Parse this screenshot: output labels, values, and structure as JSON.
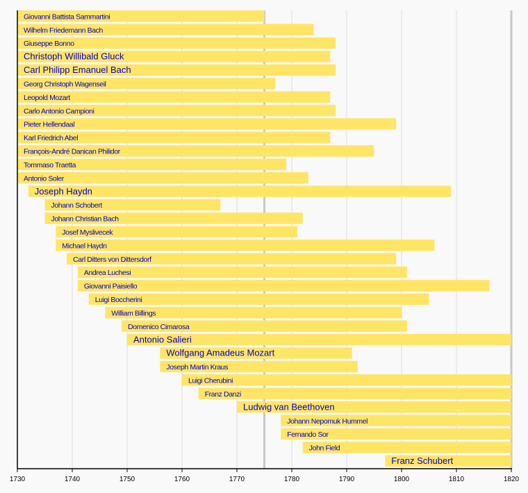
{
  "chart_data": {
    "type": "timeline",
    "xlim": [
      1730,
      1820
    ],
    "x_ticks": [
      1730,
      1740,
      1750,
      1760,
      1770,
      1780,
      1790,
      1800,
      1810,
      1820
    ],
    "grid": true,
    "highlight_lines": [
      1775,
      1820
    ],
    "colors": {
      "bar": "#ffe566",
      "label": "#0000cc",
      "grid": "#dddddd",
      "highlight": "#c8c8c8",
      "axis": "#000000",
      "background": "#f9f9f9"
    },
    "bars": [
      {
        "label": "Giovanni Battista Sammartini",
        "start": 1730,
        "end": 1775,
        "large": false
      },
      {
        "label": "Wilhelm Friedemann Bach",
        "start": 1730,
        "end": 1784,
        "large": false
      },
      {
        "label": "Giuseppe Bonno",
        "start": 1730,
        "end": 1788,
        "large": false
      },
      {
        "label": "Christoph Willibald Gluck",
        "start": 1730,
        "end": 1787,
        "large": true
      },
      {
        "label": "Carl Philipp Emanuel Bach",
        "start": 1730,
        "end": 1788,
        "large": true
      },
      {
        "label": "Georg Christoph Wagenseil",
        "start": 1730,
        "end": 1777,
        "large": false
      },
      {
        "label": "Leopold Mozart",
        "start": 1730,
        "end": 1787,
        "large": false
      },
      {
        "label": "Carlo Antonio Campioni",
        "start": 1730,
        "end": 1788,
        "large": false
      },
      {
        "label": "Pieter Hellendaal",
        "start": 1730,
        "end": 1799,
        "large": false
      },
      {
        "label": "Karl Friedrich Abel",
        "start": 1730,
        "end": 1787,
        "large": false
      },
      {
        "label": "François-André Danican Philidor",
        "start": 1730,
        "end": 1795,
        "large": false
      },
      {
        "label": "Tommaso Traetta",
        "start": 1730,
        "end": 1779,
        "large": false
      },
      {
        "label": "Antonio Soler",
        "start": 1730,
        "end": 1783,
        "large": false
      },
      {
        "label": "Joseph Haydn",
        "start": 1732,
        "end": 1809,
        "large": true
      },
      {
        "label": "Johann Schobert",
        "start": 1735,
        "end": 1767,
        "large": false
      },
      {
        "label": "Johann Christian Bach",
        "start": 1735,
        "end": 1782,
        "large": false
      },
      {
        "label": "Josef Myslivecek",
        "start": 1737,
        "end": 1781,
        "large": false
      },
      {
        "label": "Michael Haydn",
        "start": 1737,
        "end": 1806,
        "large": false
      },
      {
        "label": "Carl Ditters von Dittersdorf",
        "start": 1739,
        "end": 1799,
        "large": false
      },
      {
        "label": "Andrea Luchesi",
        "start": 1741,
        "end": 1801,
        "large": false
      },
      {
        "label": "Giovanni Paisiello",
        "start": 1741,
        "end": 1816,
        "large": false
      },
      {
        "label": "Luigi Boccherini",
        "start": 1743,
        "end": 1805,
        "large": false
      },
      {
        "label": "William Billings",
        "start": 1746,
        "end": 1800,
        "large": false
      },
      {
        "label": "Domenico Cimarosa",
        "start": 1749,
        "end": 1801,
        "large": false
      },
      {
        "label": "Antonio Salieri",
        "start": 1750,
        "end": 1820,
        "large": true
      },
      {
        "label": "Wolfgang Amadeus Mozart",
        "start": 1756,
        "end": 1791,
        "large": true
      },
      {
        "label": "Joseph Martin Kraus",
        "start": 1756,
        "end": 1792,
        "large": false
      },
      {
        "label": "Luigi Cherubini",
        "start": 1760,
        "end": 1820,
        "large": false
      },
      {
        "label": "Franz Danzi",
        "start": 1763,
        "end": 1820,
        "large": false
      },
      {
        "label": "Ludwig van Beethoven",
        "start": 1770,
        "end": 1820,
        "large": true
      },
      {
        "label": "Johann Nepomuk Hummel",
        "start": 1778,
        "end": 1820,
        "large": false
      },
      {
        "label": "Fernando Sor",
        "start": 1778,
        "end": 1820,
        "large": false
      },
      {
        "label": "John Field",
        "start": 1782,
        "end": 1820,
        "large": false
      },
      {
        "label": "Franz Schubert",
        "start": 1797,
        "end": 1820,
        "large": true
      }
    ]
  }
}
